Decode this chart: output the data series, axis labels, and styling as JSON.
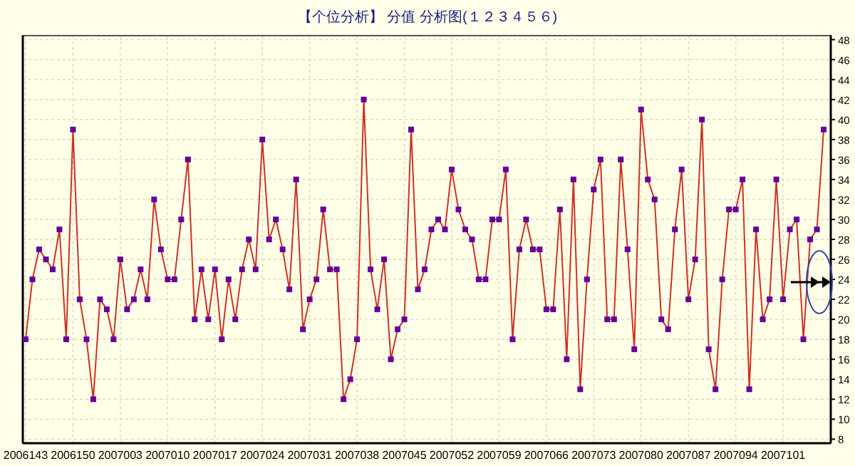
{
  "chart_data": {
    "type": "line",
    "title": "【个位分析】  分值 分析图(１２３４５６)",
    "categories": [
      "2006143",
      null,
      null,
      null,
      null,
      null,
      null,
      "2006150",
      null,
      null,
      null,
      null,
      null,
      null,
      "2007003",
      null,
      null,
      null,
      null,
      null,
      null,
      "2007010",
      null,
      null,
      null,
      null,
      null,
      null,
      "2007017",
      null,
      null,
      null,
      null,
      null,
      null,
      "2007024",
      null,
      null,
      null,
      null,
      null,
      null,
      "2007031",
      null,
      null,
      null,
      null,
      null,
      null,
      "2007038",
      null,
      null,
      null,
      null,
      null,
      null,
      "2007045",
      null,
      null,
      null,
      null,
      null,
      null,
      "2007052",
      null,
      null,
      null,
      null,
      null,
      null,
      "2007059",
      null,
      null,
      null,
      null,
      null,
      null,
      "2007066",
      null,
      null,
      null,
      null,
      null,
      null,
      "2007073",
      null,
      null,
      null,
      null,
      null,
      null,
      "2007080",
      null,
      null,
      null,
      null,
      null,
      null,
      "2007087",
      null,
      null,
      null,
      null,
      null,
      null,
      "2007094",
      null,
      null,
      null,
      null,
      null,
      null,
      "2007101",
      null,
      null,
      null,
      null,
      null,
      null
    ],
    "series": [
      {
        "color": "#cc3322",
        "values": [
          18,
          24,
          27,
          26,
          25,
          29,
          18,
          39,
          22,
          18,
          12,
          22,
          21,
          18,
          26,
          21,
          22,
          25,
          22,
          32,
          27,
          24,
          24,
          30,
          36,
          20,
          25,
          20,
          25,
          18,
          24,
          20,
          25,
          28,
          25,
          38,
          28,
          30,
          27,
          23,
          34,
          19,
          22,
          24,
          31,
          25,
          25,
          12,
          14,
          18,
          42,
          25,
          21,
          26,
          16,
          19,
          20,
          39,
          23,
          25,
          29,
          30,
          29,
          35,
          31,
          29,
          28,
          24,
          24,
          30,
          30,
          35,
          18,
          27,
          30,
          27,
          27,
          21,
          21,
          31,
          16,
          34,
          13,
          24,
          33,
          36,
          20,
          20,
          36,
          27,
          17,
          41,
          34,
          32,
          20,
          19,
          29,
          35,
          22,
          26,
          40,
          17,
          13,
          24,
          31,
          31,
          34,
          13,
          29,
          20,
          22,
          34,
          22,
          29,
          30,
          18,
          28,
          29,
          39
        ]
      }
    ],
    "ylim": [
      7.6,
      48.4
    ],
    "yticks": [
      8,
      10,
      12,
      14,
      16,
      18,
      20,
      22,
      24,
      26,
      28,
      30,
      32,
      34,
      36,
      38,
      40,
      42,
      44,
      46,
      48
    ],
    "grid": true,
    "marker": "square",
    "line_style": "solid"
  }
}
